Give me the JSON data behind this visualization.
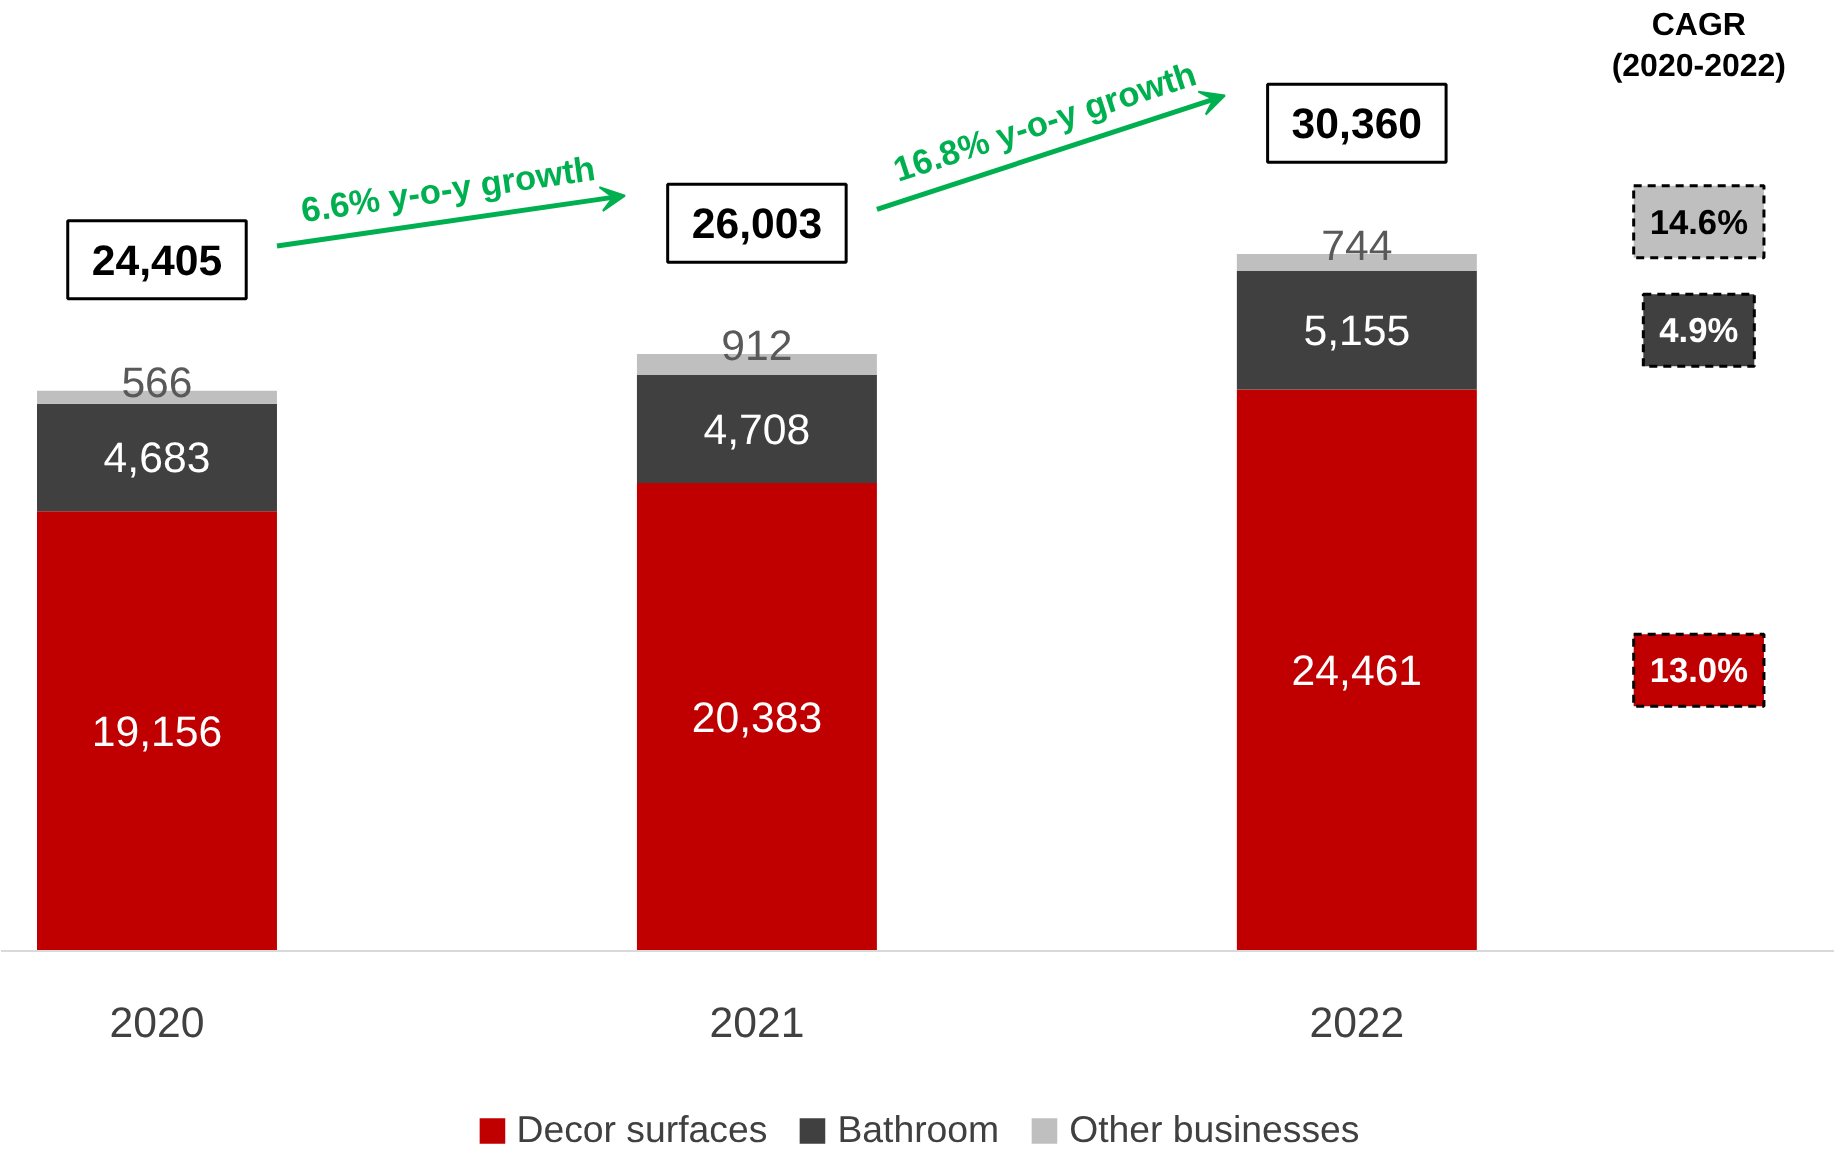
{
  "chart_data": {
    "type": "bar",
    "stacked": true,
    "categories": [
      "2020",
      "2021",
      "2022"
    ],
    "series": [
      {
        "name": "Decor surfaces",
        "color": "#c00000",
        "values": [
          19156,
          20383,
          24461
        ],
        "value_labels": [
          "19,156",
          "20,383",
          "24,461"
        ]
      },
      {
        "name": "Bathroom",
        "color": "#404040",
        "values": [
          4683,
          4708,
          5155
        ],
        "value_labels": [
          "4,683",
          "4,708",
          "5,155"
        ]
      },
      {
        "name": "Other businesses",
        "color": "#bfbfbf",
        "values": [
          566,
          912,
          744
        ],
        "value_labels": [
          "566",
          "912",
          "744"
        ]
      }
    ],
    "totals": [
      "24,405",
      "26,003",
      "30,360"
    ],
    "annotations": [
      "6.6% y-o-y growth",
      "16.8% y-o-y growth",
      "CAGR\n(2020-2022)",
      "13.0%",
      "4.9%",
      "14.6%"
    ],
    "legend": "bottom",
    "grid": false
  }
}
